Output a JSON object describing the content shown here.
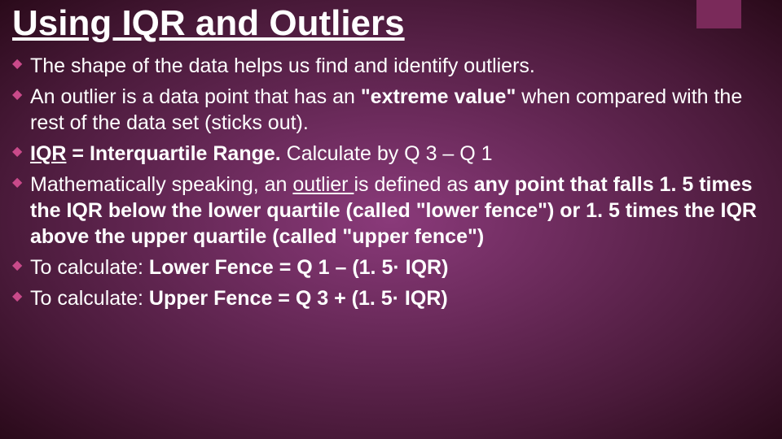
{
  "slide": {
    "title": "Using IQR and Outliers",
    "background_gradient": {
      "inner": "#8a3a7a",
      "outer": "#4a1a3a",
      "edge": "#2a0a1a"
    },
    "accent_color": "#7a2a5a",
    "bullet_marker_color": "#c94a8a",
    "text_color": "#ffffff",
    "title_fontsize": 44,
    "bullet_fontsize": 25,
    "bullets": [
      {
        "runs": [
          {
            "t": "The shape of the data helps us find and identify outliers."
          }
        ]
      },
      {
        "runs": [
          {
            "t": "An outlier is a data point that has an "
          },
          {
            "t": "\"extreme value\"",
            "b": true
          },
          {
            "t": " when compared with the rest of the data set (sticks out)."
          }
        ]
      },
      {
        "runs": [
          {
            "t": "IQR",
            "b": true,
            "u": true
          },
          {
            "t": " = Interquartile Range. ",
            "b": true
          },
          {
            "t": "Calculate by Q 3 – Q 1"
          }
        ]
      },
      {
        "runs": [
          {
            "t": "Mathematically speaking, an "
          },
          {
            "t": "outlier ",
            "u": true
          },
          {
            "t": "is defined as "
          },
          {
            "t": "any point that falls 1. 5 times the IQR below the lower quartile (called \"lower fence\") or 1. 5 times the IQR above the upper quartile (called \"upper fence\")",
            "b": true
          }
        ]
      },
      {
        "runs": [
          {
            "t": "To calculate: "
          },
          {
            "t": "Lower Fence = Q 1 – (1. 5· IQR)",
            "b": true
          }
        ]
      },
      {
        "runs": [
          {
            "t": "To calculate: "
          },
          {
            "t": "Upper Fence = Q 3 + (1. 5· IQR)",
            "b": true
          }
        ]
      }
    ]
  }
}
